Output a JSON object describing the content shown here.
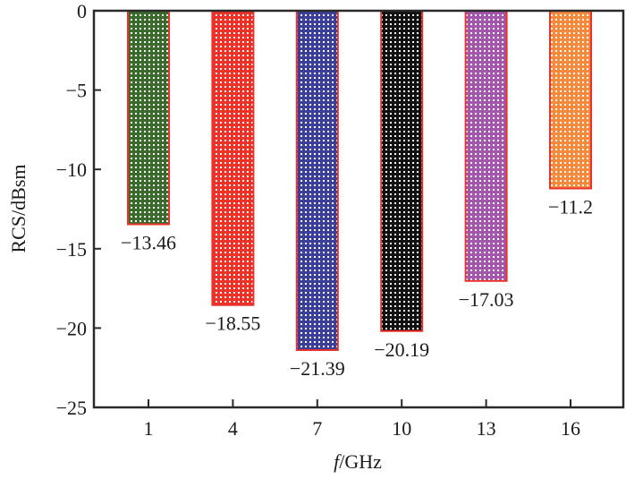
{
  "chart_data": {
    "type": "bar",
    "title": "",
    "xlabel_italic": "f",
    "xlabel_rest": "/GHz",
    "ylabel": "RCS/dBsm",
    "categories": [
      "1",
      "4",
      "7",
      "10",
      "13",
      "16"
    ],
    "values": [
      -13.46,
      -18.55,
      -21.39,
      -20.19,
      -17.03,
      -11.2
    ],
    "value_labels": [
      "−13.46",
      "−18.55",
      "−21.39",
      "−20.19",
      "−17.03",
      "−11.2"
    ],
    "colors": [
      "#3a6b2c",
      "#ee3228",
      "#3c3f9a",
      "#111111",
      "#a455ac",
      "#f58a3c"
    ],
    "edge_color": "#e8322a",
    "ylim": [
      -25,
      0
    ],
    "yticks": [
      0,
      -5,
      -10,
      -15,
      -20,
      -25
    ],
    "ytick_labels": [
      "0",
      "−5",
      "−10",
      "−15",
      "−20",
      "−25"
    ],
    "grid": false,
    "legend": "none"
  }
}
